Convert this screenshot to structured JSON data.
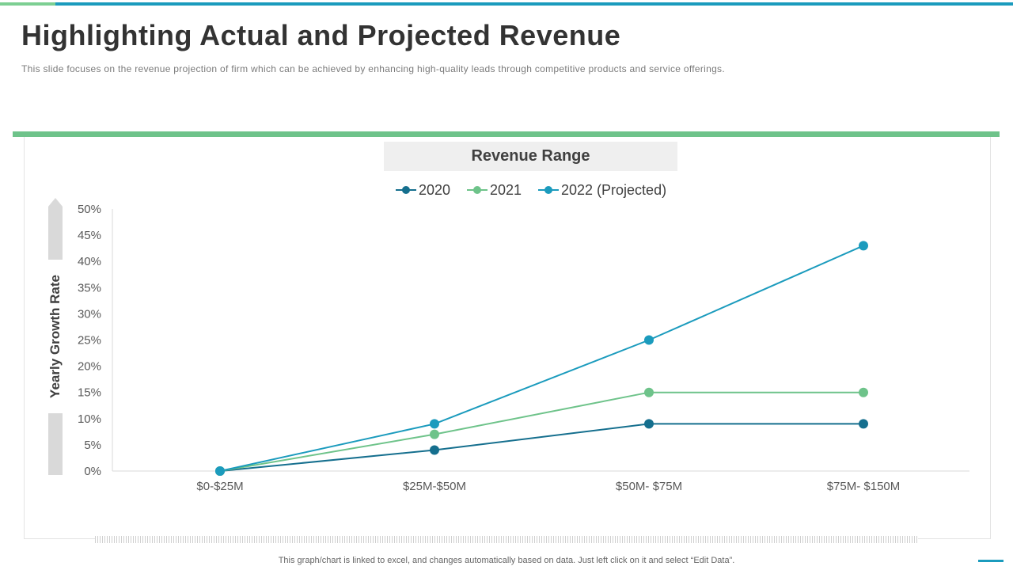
{
  "slide": {
    "title": "Highlighting Actual and Projected Revenue",
    "subtitle": "This slide focuses on the revenue  projection of firm which can be achieved by enhancing high-quality leads through competitive products and service offerings.",
    "footnote": "This graph/chart is linked to excel, and changes automatically based on data. Just left click on it and select “Edit Data”."
  },
  "colors": {
    "accent_teal": "#1b9bbd",
    "accent_green": "#6ec38a",
    "series_2020": "#156f8e",
    "series_2021": "#6ec38a",
    "series_2022": "#1b9bbd"
  },
  "chart_data": {
    "type": "line",
    "title": "Revenue Range",
    "xlabel": "",
    "ylabel": "Yearly Growth Rate",
    "categories": [
      "$0-$25M",
      "$25M-$50M",
      "$50M- $75M",
      "$75M- $150M"
    ],
    "ylim": [
      0,
      50
    ],
    "yticks": [
      "0%",
      "5%",
      "10%",
      "15%",
      "20%",
      "25%",
      "30%",
      "35%",
      "40%",
      "45%",
      "50%"
    ],
    "grid": false,
    "legend": "top-center",
    "series": [
      {
        "name": "2020",
        "values": [
          0,
          4,
          9,
          9
        ]
      },
      {
        "name": "2021",
        "values": [
          0,
          7,
          15,
          15
        ]
      },
      {
        "name": "2022 (Projected)",
        "values": [
          0,
          9,
          25,
          43
        ]
      }
    ]
  }
}
